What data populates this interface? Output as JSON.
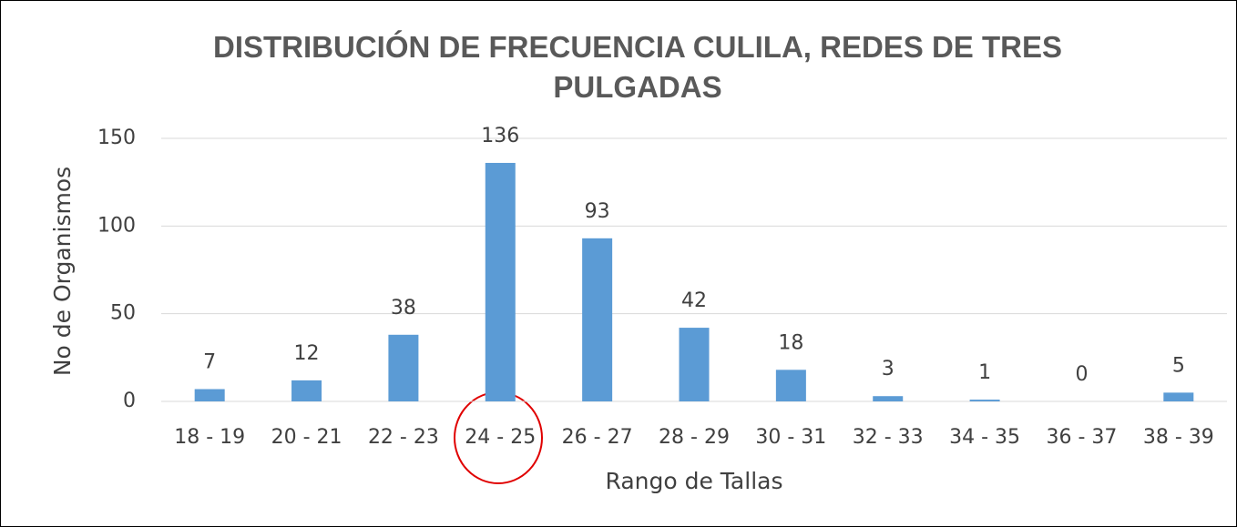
{
  "chart_data": {
    "type": "bar",
    "title": "DISTRIBUCIÓN DE FRECUENCIA CULILA, REDES DE TRES PULGADAS",
    "x_label": "Rango de Tallas",
    "y_label": "No de Organismos",
    "categories": [
      "18 - 19",
      "20 - 21",
      "22 - 23",
      "24 - 25",
      "26 - 27",
      "28 - 29",
      "30 - 31",
      "32 - 33",
      "34 - 35",
      "36 - 37",
      "38 - 39"
    ],
    "values": [
      7,
      12,
      38,
      136,
      93,
      42,
      18,
      3,
      1,
      0,
      5
    ],
    "color": "#5b9bd5",
    "ylim": [
      0,
      150
    ],
    "yticks": [
      0,
      50,
      100,
      150
    ],
    "grid": true
  }
}
